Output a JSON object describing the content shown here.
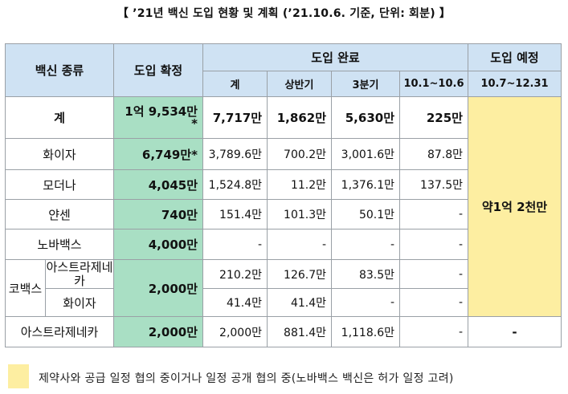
{
  "title": "【 ’21년 백신 도입 현황 및 계획 (’21.10.6. 기준, 단위: 회분) 】",
  "headers": {
    "vaccine_type": "백신 종류",
    "confirmed": "도입 확정",
    "completed": "도입 완료",
    "planned": "도입 예정",
    "sub_total": "계",
    "sub_h1": "상반기",
    "sub_q3": "3분기",
    "sub_oct": "10.1~10.6",
    "sub_planned": "10.7~12.31"
  },
  "rows": {
    "total": {
      "name": "계",
      "confirmed_line1": "1억 9,534만",
      "confirmed_line2": "*",
      "total": "7,717만",
      "h1": "1,862만",
      "q3": "5,630만",
      "oct": "225만"
    },
    "pfizer": {
      "name": "화이자",
      "confirmed": "6,749만*",
      "total": "3,789.6만",
      "h1": "700.2만",
      "q3": "3,001.6만",
      "oct": "87.8만"
    },
    "moderna": {
      "name": "모더나",
      "confirmed": "4,045만",
      "total": "1,524.8만",
      "h1": "11.2만",
      "q3": "1,376.1만",
      "oct": "137.5만"
    },
    "janssen": {
      "name": "얀센",
      "confirmed": "740만",
      "total": "151.4만",
      "h1": "101.3만",
      "q3": "50.1만",
      "oct": "-"
    },
    "novavax": {
      "name": "노바백스",
      "confirmed": "4,000만",
      "total": "-",
      "h1": "-",
      "q3": "-",
      "oct": "-"
    },
    "covax": {
      "name": "코백스",
      "confirmed": "2,000만",
      "az": {
        "name": "아스트라제네카",
        "total": "210.2만",
        "h1": "126.7만",
        "q3": "83.5만",
        "oct": "-"
      },
      "pf": {
        "name": "화이자",
        "total": "41.4만",
        "h1": "41.4만",
        "q3": "-",
        "oct": "-"
      }
    },
    "astrazeneca": {
      "name": "아스트라제네카",
      "confirmed": "2,000만",
      "total": "2,000만",
      "h1": "881.4만",
      "q3": "1,118.6만",
      "oct": "-",
      "planned": "-"
    }
  },
  "planned_merged": "약1억 2천만",
  "legend_text": "제약사와 공급 일정 협의 중이거나 일정 공개 협의 중(노바백스 백신은 허가 일정 고려)",
  "colors": {
    "header": "#cfe2f3",
    "confirmed": "#a9dfc4",
    "planned": "#fdeea1"
  }
}
